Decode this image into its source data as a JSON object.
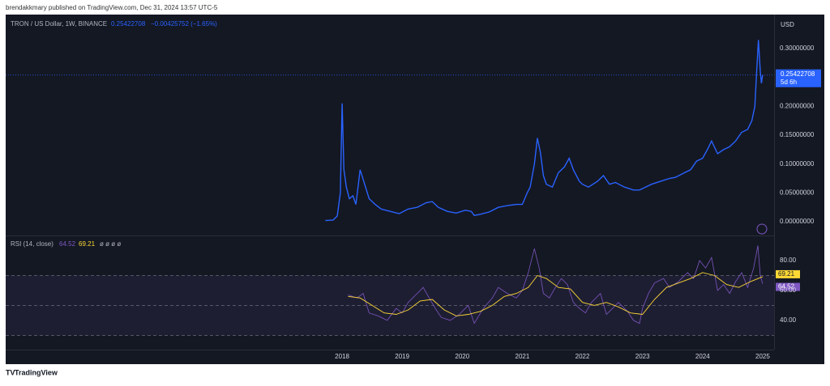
{
  "header": "brendakkmary published on TradingView.com, Dec 31, 2024 13:57 UTC-5",
  "footer": "TradingView",
  "chart_data": [
    {
      "type": "line",
      "title": "TRON / US Dollar, 1W, BINANCE",
      "change": "−0.00425752 (−1.65%)",
      "currency": "USD",
      "countdown": "5d 6h",
      "color": "#2962ff",
      "x": [
        2017.72,
        2017.85,
        2017.92,
        2017.97,
        2018.0,
        2018.03,
        2018.07,
        2018.12,
        2018.18,
        2018.23,
        2018.3,
        2018.36,
        2018.45,
        2018.55,
        2018.65,
        2018.8,
        2018.95,
        2019.1,
        2019.25,
        2019.4,
        2019.5,
        2019.6,
        2019.75,
        2019.9,
        2020.05,
        2020.15,
        2020.2,
        2020.3,
        2020.45,
        2020.6,
        2020.75,
        2020.9,
        2021.0,
        2021.08,
        2021.13,
        2021.2,
        2021.25,
        2021.3,
        2021.35,
        2021.4,
        2021.5,
        2021.6,
        2021.7,
        2021.78,
        2021.85,
        2021.95,
        2022.0,
        2022.1,
        2022.25,
        2022.35,
        2022.45,
        2022.55,
        2022.7,
        2022.85,
        2022.95,
        2023.05,
        2023.15,
        2023.3,
        2023.45,
        2023.55,
        2023.7,
        2023.8,
        2023.9,
        2024.0,
        2024.08,
        2024.15,
        2024.25,
        2024.35,
        2024.45,
        2024.55,
        2024.65,
        2024.75,
        2024.82,
        2024.87,
        2024.9,
        2024.93,
        2024.96,
        2024.98,
        2025.0
      ],
      "values": [
        0.002,
        0.003,
        0.01,
        0.05,
        0.205,
        0.09,
        0.06,
        0.04,
        0.045,
        0.03,
        0.09,
        0.07,
        0.04,
        0.03,
        0.022,
        0.018,
        0.014,
        0.022,
        0.025,
        0.033,
        0.035,
        0.025,
        0.018,
        0.015,
        0.02,
        0.018,
        0.011,
        0.013,
        0.017,
        0.025,
        0.028,
        0.03,
        0.03,
        0.05,
        0.06,
        0.1,
        0.145,
        0.12,
        0.08,
        0.065,
        0.06,
        0.085,
        0.095,
        0.11,
        0.09,
        0.07,
        0.065,
        0.06,
        0.07,
        0.08,
        0.065,
        0.068,
        0.06,
        0.055,
        0.055,
        0.06,
        0.065,
        0.07,
        0.075,
        0.077,
        0.085,
        0.09,
        0.105,
        0.11,
        0.125,
        0.14,
        0.118,
        0.125,
        0.13,
        0.14,
        0.155,
        0.16,
        0.175,
        0.2,
        0.26,
        0.315,
        0.26,
        0.24,
        0.25422708
      ],
      "xlim": [
        2012.4,
        2025.19
      ],
      "ylim": [
        -0.0224,
        0.359
      ],
      "yticks": [
        {
          "value": 0,
          "label": "0.00000000"
        },
        {
          "value": 0.05,
          "label": "0.05000000"
        },
        {
          "value": 0.1,
          "label": "0.10000000"
        },
        {
          "value": 0.15,
          "label": "0.15000000"
        },
        {
          "value": 0.2,
          "label": "0.20000000"
        },
        {
          "value": 0.3,
          "label": "0.30000000"
        }
      ]
    },
    {
      "type": "line",
      "title": "RSI (14, close)",
      "extra": "ø ø ø ø",
      "series": [
        {
          "color": "#7e57c2",
          "x": [
            2018.1,
            2018.25,
            2018.35,
            2018.45,
            2018.6,
            2018.75,
            2018.9,
            2019.0,
            2019.1,
            2019.25,
            2019.35,
            2019.45,
            2019.55,
            2019.65,
            2019.8,
            2019.95,
            2020.1,
            2020.2,
            2020.35,
            2020.5,
            2020.6,
            2020.75,
            2020.9,
            2021.0,
            2021.1,
            2021.2,
            2021.28,
            2021.35,
            2021.45,
            2021.55,
            2021.65,
            2021.75,
            2021.85,
            2021.95,
            2022.05,
            2022.15,
            2022.3,
            2022.4,
            2022.5,
            2022.6,
            2022.75,
            2022.85,
            2022.95,
            2023.0,
            2023.1,
            2023.2,
            2023.35,
            2023.45,
            2023.6,
            2023.75,
            2023.85,
            2023.95,
            2024.05,
            2024.15,
            2024.25,
            2024.35,
            2024.45,
            2024.55,
            2024.65,
            2024.75,
            2024.85,
            2024.92,
            2024.96,
            2025.0
          ],
          "values": [
            57,
            55,
            58,
            45,
            43,
            40,
            48,
            45,
            52,
            58,
            62,
            55,
            48,
            42,
            40,
            44,
            50,
            38,
            48,
            55,
            62,
            58,
            55,
            60,
            72,
            88,
            75,
            58,
            55,
            62,
            68,
            64,
            52,
            48,
            45,
            52,
            58,
            44,
            48,
            52,
            46,
            40,
            38,
            48,
            58,
            65,
            68,
            62,
            66,
            72,
            68,
            80,
            75,
            82,
            60,
            64,
            58,
            66,
            72,
            62,
            75,
            90,
            70,
            64.52
          ]
        },
        {
          "color": "#fdd835",
          "x": [
            2018.1,
            2018.3,
            2018.5,
            2018.7,
            2018.9,
            2019.1,
            2019.3,
            2019.5,
            2019.7,
            2019.9,
            2020.1,
            2020.3,
            2020.5,
            2020.7,
            2020.9,
            2021.1,
            2021.25,
            2021.4,
            2021.6,
            2021.8,
            2022.0,
            2022.2,
            2022.4,
            2022.6,
            2022.8,
            2023.0,
            2023.2,
            2023.4,
            2023.6,
            2023.8,
            2024.0,
            2024.2,
            2024.4,
            2024.6,
            2024.8,
            2025.0
          ],
          "values": [
            56,
            55,
            50,
            45,
            44,
            47,
            53,
            54,
            47,
            43,
            44,
            46,
            50,
            56,
            58,
            62,
            70,
            68,
            62,
            61,
            52,
            50,
            52,
            49,
            45,
            44,
            54,
            62,
            65,
            68,
            72,
            70,
            64,
            62,
            66,
            69.21
          ]
        }
      ],
      "bands": [
        70,
        50,
        30
      ],
      "xlim": [
        2012.4,
        2025.19
      ],
      "ylim": [
        20.5,
        96.2
      ],
      "xticks": [
        2018,
        2019,
        2020,
        2021,
        2022,
        2023,
        2024,
        2025
      ],
      "yticks": [
        {
          "value": 40,
          "label": "40.00"
        },
        {
          "value": 60,
          "label": "60.00"
        },
        {
          "value": 80,
          "label": "80.00"
        }
      ]
    }
  ]
}
